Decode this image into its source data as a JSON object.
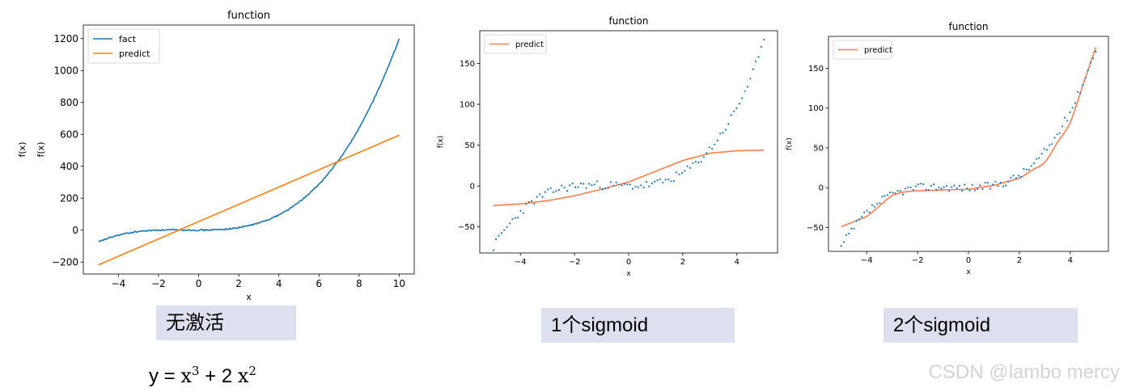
{
  "chart_data": [
    {
      "type": "line",
      "title": "function",
      "xlabel": "x",
      "ylabel": "f(x)",
      "ylabel_secondary": "f(x)",
      "xlim": [
        -5.75,
        10.75
      ],
      "ylim": [
        -275,
        1285
      ],
      "x_ticks": [
        -4,
        -2,
        0,
        2,
        4,
        6,
        8,
        10
      ],
      "y_ticks": [
        -200,
        0,
        200,
        400,
        600,
        800,
        1000,
        1200
      ],
      "y_tick_labels": [
        "−200",
        "0",
        "200",
        "400",
        "600",
        "800",
        "1000",
        "1200"
      ],
      "x_tick_labels": [
        "−4",
        "−2",
        "0",
        "2",
        "4",
        "6",
        "8",
        "10"
      ],
      "legend_position": "upper-left",
      "series": [
        {
          "name": "fact",
          "color": "#1f77b4",
          "style": "line",
          "function": "x^3 + 2x^2 (noisy)",
          "x": [
            -5,
            -4,
            -3,
            -2,
            -1,
            0,
            1,
            2,
            3,
            4,
            5,
            6,
            7,
            8,
            9,
            10
          ],
          "values": [
            -75,
            -32,
            -9,
            0,
            1,
            0,
            3,
            16,
            45,
            96,
            175,
            288,
            441,
            640,
            891,
            1200
          ]
        },
        {
          "name": "predict",
          "color": "#ff7f0e",
          "style": "line",
          "x": [
            -5,
            10
          ],
          "values": [
            -218,
            595
          ]
        }
      ]
    },
    {
      "type": "scatter",
      "title": "function",
      "xlabel": "x",
      "ylabel": "f(x)",
      "xlim": [
        -5.5,
        5.5
      ],
      "ylim": [
        -82,
        190
      ],
      "x_ticks": [
        -4,
        -2,
        0,
        2,
        4
      ],
      "y_ticks": [
        -50,
        0,
        50,
        100,
        150
      ],
      "x_tick_labels": [
        "−4",
        "−2",
        "0",
        "2",
        "4"
      ],
      "y_tick_labels": [
        "−50",
        "0",
        "50",
        "100",
        "150"
      ],
      "legend_position": "upper-left",
      "series": [
        {
          "name": "predict",
          "color": "#ff7f50",
          "style": "line",
          "x": [
            -5,
            -4,
            -3,
            -2,
            -1,
            0,
            1,
            2,
            3,
            4,
            5
          ],
          "values": [
            -24,
            -22,
            -18,
            -12,
            -4,
            5,
            18,
            31,
            40,
            43,
            44
          ]
        },
        {
          "color": "#1f77b4",
          "style": "points",
          "function": "x^3 + 2x^2 + noise",
          "x_range": [
            -5,
            5
          ],
          "count": 100
        }
      ]
    },
    {
      "type": "scatter",
      "title": "function",
      "xlabel": "x",
      "ylabel": "f(x)",
      "xlim": [
        -5.5,
        5.5
      ],
      "ylim": [
        -80,
        190
      ],
      "x_ticks": [
        -4,
        -2,
        0,
        2,
        4
      ],
      "y_ticks": [
        -50,
        0,
        50,
        100,
        150
      ],
      "x_tick_labels": [
        "−4",
        "−2",
        "0",
        "2",
        "4"
      ],
      "y_tick_labels": [
        "−50",
        "0",
        "50",
        "100",
        "150"
      ],
      "legend_position": "upper-left",
      "series": [
        {
          "name": "predict",
          "color": "#ff7f50",
          "style": "line",
          "x": [
            -5,
            -4,
            -3,
            -2.7,
            -2,
            -1,
            0,
            1,
            2,
            3,
            4,
            5
          ],
          "values": [
            -49,
            -36,
            -10,
            -6,
            -4,
            -3,
            -2,
            3,
            12,
            32,
            82,
            176
          ]
        },
        {
          "color": "#1f77b4",
          "style": "points",
          "function": "x^3 + 2x^2 + noise",
          "x_range": [
            -5,
            5
          ],
          "count": 100
        }
      ]
    }
  ],
  "captions": {
    "no_activation": "无激活",
    "one_sigmoid": "1个sigmoid",
    "two_sigmoid": "2个sigmoid"
  },
  "formula": {
    "prefix": "y = ",
    "base1": "x",
    "exp1": "3",
    "middle": " + 2 ",
    "base2": "x",
    "exp2": "2"
  },
  "watermark": "CSDN @lambo mercy"
}
